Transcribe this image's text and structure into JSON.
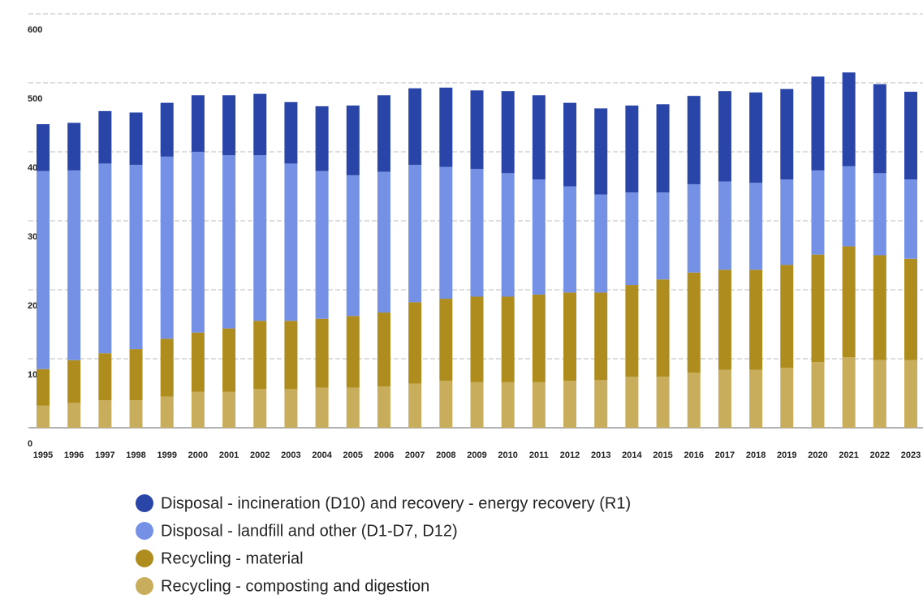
{
  "chart_data": {
    "type": "bar",
    "stacked": true,
    "categories": [
      "1995",
      "1996",
      "1997",
      "1998",
      "1999",
      "2000",
      "2001",
      "2002",
      "2003",
      "2004",
      "2005",
      "2006",
      "2007",
      "2008",
      "2009",
      "2010",
      "2011",
      "2012",
      "2013",
      "2014",
      "2015",
      "2016",
      "2017",
      "2018",
      "2019",
      "2020",
      "2021",
      "2022",
      "2023"
    ],
    "series": [
      {
        "name": "Disposal - incineration (D10) and recovery - energy recovery (R1)",
        "color": "#2a45a8",
        "values": [
          68,
          69,
          76,
          76,
          78,
          82,
          87,
          89,
          89,
          94,
          101,
          111,
          111,
          115,
          114,
          119,
          122,
          121,
          125,
          126,
          128,
          128,
          131,
          131,
          131,
          136,
          136,
          129,
          127
        ]
      },
      {
        "name": "Disposal - landfill and other (D1-D7, D12)",
        "color": "#7591e6",
        "values": [
          287,
          275,
          275,
          267,
          264,
          262,
          251,
          240,
          228,
          214,
          204,
          204,
          199,
          191,
          185,
          179,
          167,
          154,
          142,
          134,
          126,
          128,
          128,
          126,
          124,
          122,
          116,
          119,
          115
        ]
      },
      {
        "name": "Recycling - material",
        "color": "#ae8c1d",
        "values": [
          53,
          62,
          68,
          74,
          84,
          86,
          92,
          99,
          99,
          100,
          104,
          107,
          118,
          119,
          124,
          124,
          127,
          128,
          127,
          133,
          141,
          145,
          145,
          145,
          149,
          156,
          161,
          152,
          147
        ]
      },
      {
        "name": "Recycling - composting and digestion",
        "color": "#c8ae5c",
        "values": [
          32,
          36,
          40,
          40,
          45,
          52,
          52,
          56,
          56,
          58,
          58,
          60,
          64,
          68,
          66,
          66,
          66,
          68,
          69,
          74,
          74,
          80,
          84,
          84,
          87,
          95,
          102,
          98,
          98
        ]
      }
    ],
    "ylim": [
      0,
      600
    ],
    "yticks": [
      0,
      100,
      200,
      300,
      400,
      500,
      600
    ],
    "grid": true
  }
}
